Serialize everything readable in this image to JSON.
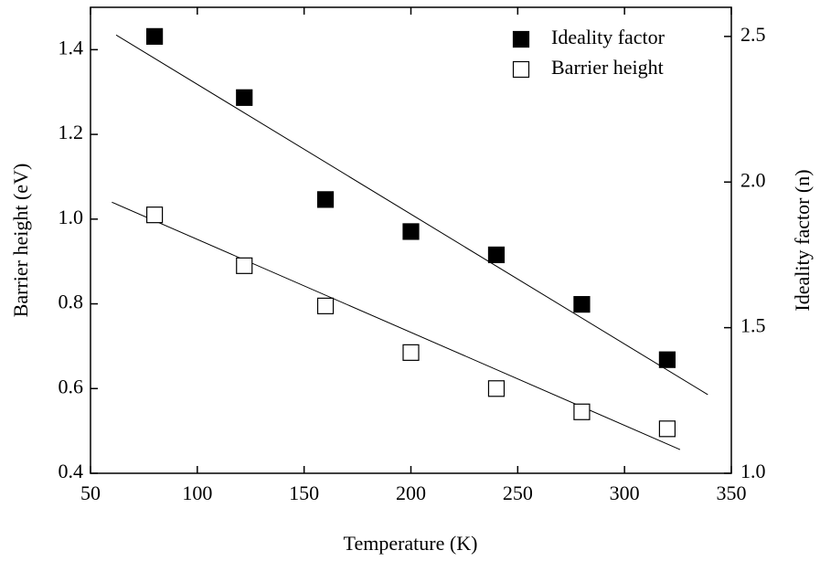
{
  "chart_data": {
    "type": "scatter",
    "xlabel": "Temperature (K)",
    "ylabel": "Barrier height (eV)",
    "y2label": "Ideality factor (n)",
    "xlim": [
      50,
      350
    ],
    "xticks": [
      50,
      100,
      150,
      200,
      250,
      300,
      350
    ],
    "ylim": [
      0.4,
      1.5
    ],
    "yticks": [
      0.4,
      0.6,
      0.8,
      {
        "value": 1,
        "label": "1.0"
      },
      1.2,
      1.4
    ],
    "y2lim": [
      1,
      2.6
    ],
    "y2ticks": [
      {
        "value": 1,
        "label": "1.0"
      },
      1.5,
      {
        "value": 2,
        "label": "2.0"
      },
      2.5
    ],
    "legend": "upper-right",
    "series": [
      {
        "name": "Ideality factor",
        "color": "#000000",
        "marker": "filled",
        "axis": "y2",
        "x": [
          80,
          122,
          160,
          200,
          240,
          280,
          320
        ],
        "values": [
          2.5,
          2.29,
          1.94,
          1.83,
          1.75,
          1.58,
          1.39
        ]
      },
      {
        "name": "Barrier height",
        "color": "#000000",
        "marker": "open",
        "axis": "y",
        "x": [
          80,
          122,
          160,
          200,
          240,
          280,
          320
        ],
        "values": [
          1.01,
          0.89,
          0.795,
          0.685,
          0.6,
          0.545,
          0.505
        ]
      }
    ],
    "fits": [
      {
        "axis": "y2",
        "x": [
          62,
          339
        ],
        "values": [
          2.505,
          1.27
        ]
      },
      {
        "axis": "y",
        "x": [
          60,
          326
        ],
        "values": [
          1.04,
          0.456
        ]
      }
    ]
  }
}
